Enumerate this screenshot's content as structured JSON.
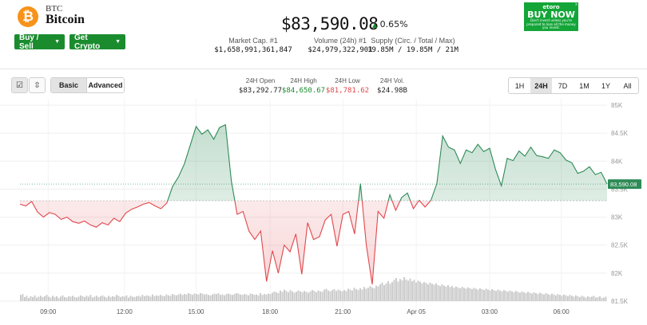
{
  "header": {
    "symbol": "BTC",
    "name": "Bitcoin",
    "logo_glyph": "₿",
    "buy_sell": "Buy / Sell",
    "get_crypto": "Get Crypto",
    "price": "$83,590.08",
    "change_arrow": "▲",
    "change_pct": "0.65%"
  },
  "ad": {
    "brand": "etoro",
    "cta": "BUY NOW",
    "fine_print": "Don't invest unless you're prepared to lose all the money you invest.",
    "close": "x"
  },
  "stats": [
    {
      "label": "Market Cap. #1",
      "value": "$1,658,991,361,847"
    },
    {
      "label": "Volume (24h) #1",
      "value": "$24,979,322,901"
    },
    {
      "label": "Supply (Circ. / Total / Max)",
      "value": "19.85M / 19.85M / 21M"
    }
  ],
  "toolbar": {
    "chart_icon": "☑",
    "compare_icon": "⇳",
    "basic": "Basic",
    "advanced": "Advanced",
    "h24": [
      {
        "label": "24H Open",
        "value": "$83,292.77",
        "color": "#222222"
      },
      {
        "label": "24H High",
        "value": "$84,650.67",
        "color": "#1a8c2e"
      },
      {
        "label": "24H Low",
        "value": "$81,781.62",
        "color": "#e0474c"
      },
      {
        "label": "24H Vol.",
        "value": "$24.98B",
        "color": "#222222"
      }
    ],
    "timeframes": [
      "1H",
      "24H",
      "7D",
      "1M",
      "1Y",
      "All"
    ],
    "active_timeframe": "24H"
  },
  "chart_data": {
    "type": "area",
    "title": "",
    "baseline": 83292.77,
    "ylim": [
      81500,
      85000
    ],
    "y_ticks": [
      85000,
      84500,
      84000,
      83500,
      83000,
      82500,
      82000,
      81500
    ],
    "y_tick_labels": [
      "85K",
      "84.5K",
      "84K",
      "83.5K",
      "83K",
      "82.5K",
      "82K",
      "81.5K"
    ],
    "x_tick_labels": [
      "09:00",
      "12:00",
      "15:00",
      "18:00",
      "21:00",
      "Apr 05",
      "03:00",
      "06:00"
    ],
    "x_tick_positions": [
      0.048,
      0.178,
      0.3,
      0.426,
      0.55,
      0.675,
      0.8,
      0.922
    ],
    "last_price_label": "83,590.08",
    "up_color": "#2e8b57",
    "down_color": "#e0474c",
    "series": [
      {
        "name": "price",
        "x": [
          0,
          0.01,
          0.02,
          0.03,
          0.04,
          0.05,
          0.06,
          0.07,
          0.08,
          0.09,
          0.1,
          0.11,
          0.12,
          0.13,
          0.14,
          0.15,
          0.16,
          0.17,
          0.18,
          0.19,
          0.2,
          0.21,
          0.22,
          0.23,
          0.24,
          0.25,
          0.26,
          0.27,
          0.28,
          0.29,
          0.3,
          0.31,
          0.32,
          0.33,
          0.34,
          0.35,
          0.36,
          0.37,
          0.38,
          0.39,
          0.4,
          0.41,
          0.42,
          0.43,
          0.44,
          0.45,
          0.46,
          0.47,
          0.48,
          0.49,
          0.5,
          0.51,
          0.52,
          0.53,
          0.54,
          0.55,
          0.56,
          0.57,
          0.58,
          0.59,
          0.6,
          0.61,
          0.62,
          0.63,
          0.64,
          0.65,
          0.66,
          0.67,
          0.68,
          0.69,
          0.7,
          0.71,
          0.72,
          0.73,
          0.74,
          0.75,
          0.76,
          0.77,
          0.78,
          0.79,
          0.8,
          0.81,
          0.82,
          0.83,
          0.84,
          0.85,
          0.86,
          0.87,
          0.88,
          0.89,
          0.9,
          0.91,
          0.92,
          0.93,
          0.94,
          0.95,
          0.96,
          0.97,
          0.98,
          0.99,
          1.0
        ],
        "values": [
          83230,
          83200,
          83280,
          83090,
          83000,
          83080,
          83050,
          82960,
          83000,
          82920,
          82890,
          82930,
          82860,
          82820,
          82900,
          82860,
          82980,
          82920,
          83070,
          83140,
          83180,
          83230,
          83260,
          83200,
          83150,
          83250,
          83550,
          83720,
          83950,
          84280,
          84620,
          84480,
          84560,
          84390,
          84600,
          84650,
          83650,
          83050,
          83100,
          82750,
          82600,
          82750,
          81850,
          82400,
          82000,
          82500,
          82380,
          82700,
          81980,
          82900,
          82600,
          82650,
          82950,
          83050,
          82480,
          83050,
          83100,
          82700,
          83600,
          82500,
          81800,
          83100,
          82980,
          83400,
          83120,
          83350,
          83430,
          83150,
          83300,
          83180,
          83300,
          83600,
          84450,
          84250,
          84200,
          83960,
          84200,
          84150,
          84300,
          84170,
          84230,
          83850,
          83560,
          84050,
          84010,
          84180,
          84090,
          84250,
          84100,
          84080,
          84050,
          84200,
          84150,
          84020,
          83970,
          83780,
          83820,
          83900,
          83760,
          83800,
          83590
        ]
      }
    ],
    "volume": [
      14,
      16,
      9,
      12,
      7,
      11,
      9,
      13,
      8,
      10,
      12,
      9,
      11,
      14,
      10,
      8,
      12,
      9,
      11,
      7,
      10,
      13,
      9,
      8,
      11,
      10,
      12,
      9,
      8,
      10,
      13,
      11,
      9,
      12,
      10,
      14,
      8,
      10,
      12,
      9,
      11,
      13,
      10,
      8,
      12,
      9,
      11,
      10,
      14,
      12,
      9,
      11,
      10,
      13,
      8,
      12,
      10,
      9,
      11,
      12,
      10,
      14,
      11,
      13,
      12,
      10,
      15,
      11,
      13,
      12,
      14,
      12,
      11,
      15,
      13,
      12,
      16,
      14,
      13,
      15,
      17,
      14,
      16,
      15,
      18,
      16,
      14,
      17,
      16,
      15,
      18,
      17,
      15,
      16,
      14,
      13,
      15,
      17,
      16,
      18,
      14,
      15,
      13,
      16,
      17,
      15,
      14,
      16,
      18,
      17,
      15,
      14,
      16,
      15,
      13,
      17,
      16,
      14,
      15,
      13,
      18,
      14,
      16,
      15,
      17,
      16,
      19,
      22,
      20,
      18,
      24,
      21,
      26,
      23,
      20,
      25,
      22,
      19,
      21,
      24,
      22,
      20,
      23,
      21,
      19,
      22,
      25,
      23,
      20,
      24,
      22,
      21,
      26,
      28,
      24,
      22,
      25,
      27,
      23,
      26,
      24,
      22,
      25,
      23,
      28,
      26,
      24,
      30,
      27,
      25,
      29,
      26,
      32,
      28,
      30,
      34,
      31,
      29,
      35,
      33,
      38,
      42,
      36,
      40,
      45,
      39,
      43,
      48,
      52,
      44,
      50,
      47,
      54,
      49,
      46,
      51,
      45,
      48,
      42,
      46,
      44,
      40,
      43,
      41,
      38,
      42,
      39,
      37,
      40,
      36,
      34,
      38,
      35,
      33,
      36,
      32,
      34,
      30,
      33,
      31,
      29,
      32,
      30,
      28,
      31,
      29,
      27,
      30,
      28,
      26,
      29,
      27,
      25,
      28,
      26,
      24,
      27,
      25,
      23,
      26,
      24,
      22,
      25,
      23,
      21,
      24,
      22,
      20,
      23,
      21,
      19,
      22,
      20,
      18,
      21,
      19,
      17,
      20,
      18,
      16,
      19,
      17,
      15,
      18,
      16,
      14,
      17,
      15,
      13,
      16,
      14,
      12,
      15,
      13,
      11,
      14,
      12,
      10,
      13,
      11,
      9,
      12,
      10,
      8,
      11,
      9,
      10,
      12,
      8,
      9,
      11,
      7,
      8,
      10
    ]
  }
}
